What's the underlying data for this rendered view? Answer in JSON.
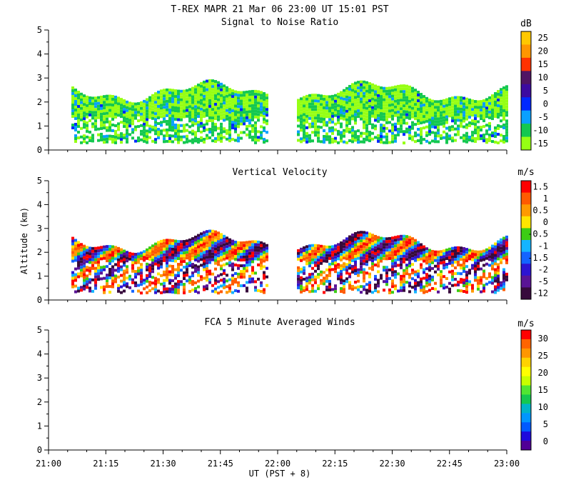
{
  "header": {
    "title": "T-REX   MAPR 21 Mar 06   23:00 UT   15:01   PST"
  },
  "chart_data": [
    {
      "type": "heatmap",
      "title": "Signal to Noise Ratio",
      "colorbar_unit": "dB",
      "colorbar_labels": [
        "25",
        "20",
        "15",
        "10",
        "5",
        "0",
        "-5",
        "-10",
        "-15"
      ],
      "colorbar_colors": [
        "#ffc800",
        "#ff9600",
        "#ff3200",
        "#501464",
        "#3c0aa0",
        "#0028ff",
        "#0aa0ff",
        "#14c850",
        "#96ff14"
      ],
      "xlim": [
        "21:00",
        "23:00"
      ],
      "ylim": [
        0,
        5
      ],
      "yticks": [
        "0",
        "1",
        "2",
        "3",
        "4",
        "5"
      ],
      "ylabel": "",
      "data_gap": [
        "21:58",
        "22:05"
      ]
    },
    {
      "type": "heatmap",
      "title": "Vertical Velocity",
      "colorbar_unit": "m/s",
      "colorbar_labels": [
        "1.5",
        "1",
        "0.5",
        "0",
        "-0.5",
        "-1",
        "-1.5",
        "-2",
        "-5",
        "-12"
      ],
      "colorbar_colors": [
        "#ff0000",
        "#ff5a00",
        "#ff9a00",
        "#ffe600",
        "#3ccd14",
        "#14b4ff",
        "#1464ff",
        "#2d14d2",
        "#5a1496",
        "#370a3c"
      ],
      "xlim": [
        "21:00",
        "23:00"
      ],
      "ylim": [
        0,
        5
      ],
      "yticks": [
        "0",
        "1",
        "2",
        "3",
        "4",
        "5"
      ],
      "ylabel": "Altitude (km)",
      "data_gap": [
        "21:58",
        "22:05"
      ]
    },
    {
      "type": "heatmap",
      "title": "FCA 5 Minute Averaged Winds",
      "colorbar_unit": "m/s",
      "colorbar_labels": [
        "30",
        "25",
        "20",
        "15",
        "10",
        "5",
        "0"
      ],
      "colorbar_colors": [
        "#ff0000",
        "#ff6400",
        "#ff9600",
        "#ffd200",
        "#ffff00",
        "#c8ff00",
        "#50e632",
        "#14c850",
        "#00b4c8",
        "#0096ff",
        "#005aff",
        "#1e0adc",
        "#500096"
      ],
      "xlim": [
        "21:00",
        "23:00"
      ],
      "ylim": [
        0,
        5
      ],
      "yticks": [
        "0",
        "1",
        "2",
        "3",
        "4",
        "5"
      ],
      "xticks": [
        "21:00",
        "21:15",
        "21:30",
        "21:45",
        "22:00",
        "22:15",
        "22:30",
        "22:45",
        "23:00"
      ],
      "xlabel": "UT  (PST + 8)",
      "ylabel": ""
    }
  ]
}
